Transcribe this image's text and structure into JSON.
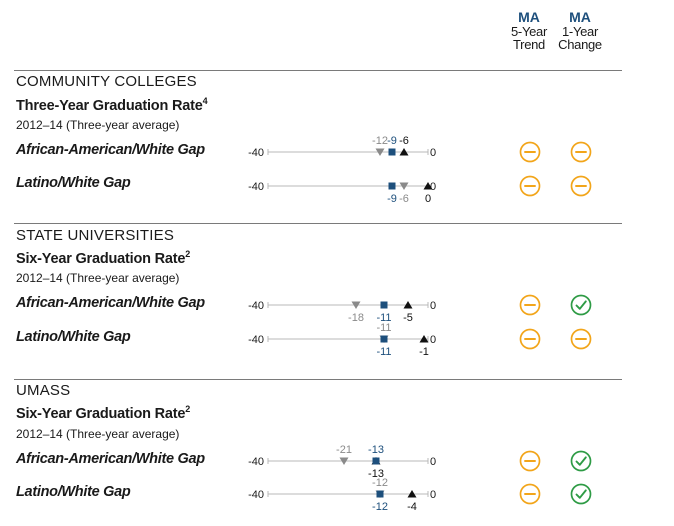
{
  "header": {
    "trend": {
      "ma": "MA",
      "line1": "5-Year",
      "line2": "Trend"
    },
    "change": {
      "ma": "MA",
      "line1": "1-Year",
      "line2": "Change"
    }
  },
  "colors": {
    "massachusetts": "#1d4f7c",
    "peer_gray": "#8a8a8a",
    "top_black": "#111111",
    "neutral_status": "#f2a51a",
    "improving_status": "#2e9b45",
    "axis_line": "#b8b8b8",
    "rule": "#7a7a7a"
  },
  "legend_note": "Square = MA; gray down-triangle and black up-triangle are comparison markers",
  "sections": [
    {
      "title": "COMMUNITY COLLEGES",
      "metric": "Three-Year Graduation Rate",
      "footnote": "4",
      "period": "2012–14 (Three-year average)"
    },
    {
      "title": "STATE UNIVERSITIES",
      "metric": "Six-Year Graduation Rate",
      "footnote": "2",
      "period": "2012–14 (Three-year average)"
    },
    {
      "title": "UMASS",
      "metric": "Six-Year Graduation Rate",
      "footnote": "2",
      "period": "2012–14 (Three-year average)"
    }
  ],
  "rows": [
    {
      "label": "African-American/White Gap"
    },
    {
      "label": "Latino/White Gap"
    },
    {
      "label": "African-American/White Gap"
    },
    {
      "label": "Latino/White Gap"
    },
    {
      "label": "African-American/White Gap"
    },
    {
      "label": "Latino/White Gap"
    }
  ],
  "chart_data": {
    "type": "scatter",
    "xlim": [
      -40,
      0
    ],
    "axis_end_labels": [
      "-40",
      "0"
    ],
    "rows": [
      {
        "section": "COMMUNITY COLLEGES",
        "row": "African-American/White Gap",
        "markers": [
          {
            "kind": "gray",
            "value": -12,
            "label": "-12",
            "label_pos": "above"
          },
          {
            "kind": "ma",
            "value": -9,
            "label": "-9",
            "label_pos": "above"
          },
          {
            "kind": "black",
            "value": -6,
            "label": "-6",
            "label_pos": "above"
          }
        ],
        "trend": "neutral",
        "change": "neutral"
      },
      {
        "section": "COMMUNITY COLLEGES",
        "row": "Latino/White Gap",
        "markers": [
          {
            "kind": "ma",
            "value": -9,
            "label": "-9",
            "label_pos": "below"
          },
          {
            "kind": "gray",
            "value": -6,
            "label": "-6",
            "label_pos": "below"
          },
          {
            "kind": "black",
            "value": 0,
            "label": "0",
            "label_pos": "below"
          }
        ],
        "trend": "neutral",
        "change": "neutral"
      },
      {
        "section": "STATE UNIVERSITIES",
        "row": "African-American/White Gap",
        "markers": [
          {
            "kind": "gray",
            "value": -18,
            "label": "-18",
            "label_pos": "below"
          },
          {
            "kind": "ma",
            "value": -11,
            "label": "-11",
            "label_pos": "below"
          },
          {
            "kind": "black",
            "value": -5,
            "label": "-5",
            "label_pos": "below"
          }
        ],
        "trend": "neutral",
        "change": "improving"
      },
      {
        "section": "STATE UNIVERSITIES",
        "row": "Latino/White Gap",
        "markers": [
          {
            "kind": "gray",
            "value": -11,
            "label": "-11",
            "label_pos": "above"
          },
          {
            "kind": "ma",
            "value": -11,
            "label": "-11",
            "label_pos": "below"
          },
          {
            "kind": "black",
            "value": -1,
            "label": "-1",
            "label_pos": "below"
          }
        ],
        "trend": "neutral",
        "change": "neutral"
      },
      {
        "section": "UMASS",
        "row": "African-American/White Gap",
        "markers": [
          {
            "kind": "gray",
            "value": -21,
            "label": "-21",
            "label_pos": "above"
          },
          {
            "kind": "ma",
            "value": -13,
            "label": "-13",
            "label_pos": "above"
          },
          {
            "kind": "black",
            "value": -13,
            "label": "-13",
            "label_pos": "below"
          }
        ],
        "trend": "neutral",
        "change": "improving"
      },
      {
        "section": "UMASS",
        "row": "Latino/White Gap",
        "markers": [
          {
            "kind": "gray",
            "value": -12,
            "label": "-12",
            "label_pos": "above"
          },
          {
            "kind": "ma",
            "value": -12,
            "label": "-12",
            "label_pos": "below"
          },
          {
            "kind": "black",
            "value": -4,
            "label": "-4",
            "label_pos": "below"
          }
        ],
        "trend": "neutral",
        "change": "improving"
      }
    ]
  }
}
